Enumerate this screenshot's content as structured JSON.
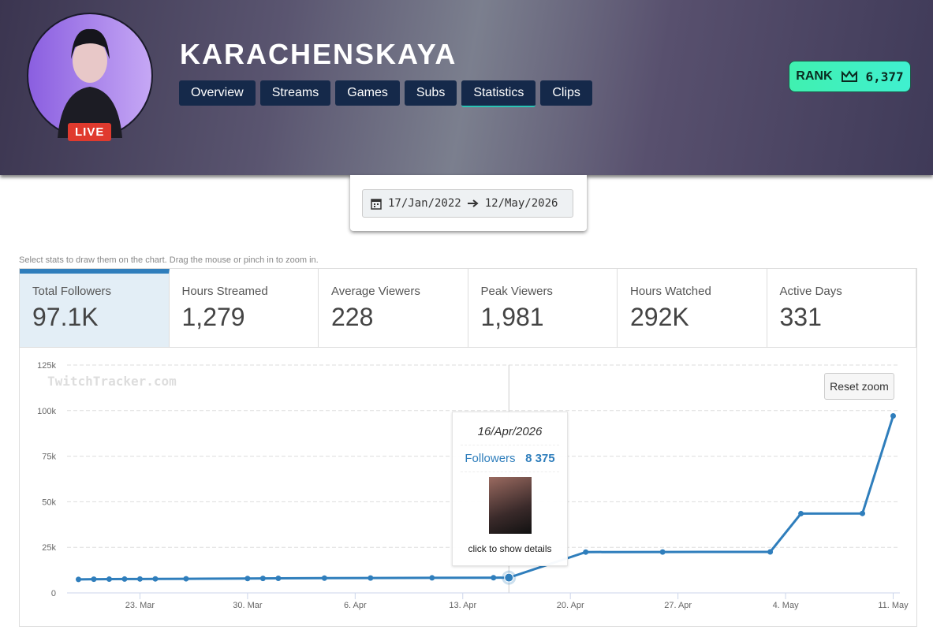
{
  "header": {
    "channel": "KARACHENSKAYA",
    "live": "LIVE",
    "nav": [
      "Overview",
      "Streams",
      "Games",
      "Subs",
      "Statistics",
      "Clips"
    ],
    "rank_label": "RANK",
    "rank": "6,377"
  },
  "date_range": {
    "from": "17/Jan/2022",
    "to": "12/May/2026"
  },
  "hint": "Select stats to draw them on the chart. Drag the mouse or pinch in to zoom in.",
  "stats": [
    {
      "label": "Total Followers",
      "value": "97.1K"
    },
    {
      "label": "Hours Streamed",
      "value": "1,279"
    },
    {
      "label": "Average Viewers",
      "value": "228"
    },
    {
      "label": "Peak Viewers",
      "value": "1,981"
    },
    {
      "label": "Hours Watched",
      "value": "292K"
    },
    {
      "label": "Active Days",
      "value": "331"
    }
  ],
  "chart_data": {
    "type": "line",
    "watermark": "TwitchTracker.com",
    "reset_zoom": "Reset zoom",
    "x": [
      "2026-03-19",
      "2026-03-20",
      "2026-03-21",
      "2026-03-22",
      "2026-03-23",
      "2026-03-24",
      "2026-03-26",
      "2026-03-30",
      "2026-03-31",
      "2026-04-01",
      "2026-04-04",
      "2026-04-07",
      "2026-04-11",
      "2026-04-15",
      "2026-04-16",
      "2026-04-21",
      "2026-04-26",
      "2026-05-03",
      "2026-05-05",
      "2026-05-09",
      "2026-05-11"
    ],
    "series": [
      {
        "name": "Followers",
        "color": "#2f7ebc",
        "values": [
          7400,
          7500,
          7550,
          7600,
          7650,
          7700,
          7750,
          7900,
          7950,
          8000,
          8100,
          8150,
          8250,
          8330,
          8375,
          22400,
          22450,
          22500,
          43500,
          43600,
          97100
        ]
      }
    ],
    "xlim": [
      "2026-03-18",
      "2026-05-12"
    ],
    "xticks": [
      {
        "value": "2026-03-23",
        "label": "23. Mar"
      },
      {
        "value": "2026-03-30",
        "label": "30. Mar"
      },
      {
        "value": "2026-04-06",
        "label": "6. Apr"
      },
      {
        "value": "2026-04-13",
        "label": "13. Apr"
      },
      {
        "value": "2026-04-20",
        "label": "20. Apr"
      },
      {
        "value": "2026-04-27",
        "label": "27. Apr"
      },
      {
        "value": "2026-05-04",
        "label": "4. May"
      },
      {
        "value": "2026-05-11",
        "label": "11. May"
      }
    ],
    "ylim": [
      0,
      125000
    ],
    "yticks": [
      0,
      {
        "value": 25000,
        "label": "25k"
      },
      {
        "value": 50000,
        "label": "50k"
      },
      {
        "value": 75000,
        "label": "75k"
      },
      {
        "value": 100000,
        "label": "100k"
      },
      {
        "value": 125000,
        "label": "125k"
      }
    ],
    "grid": true,
    "tooltip": {
      "date": "16/Apr/2026",
      "value": "8 375",
      "action": "click to show details"
    }
  }
}
